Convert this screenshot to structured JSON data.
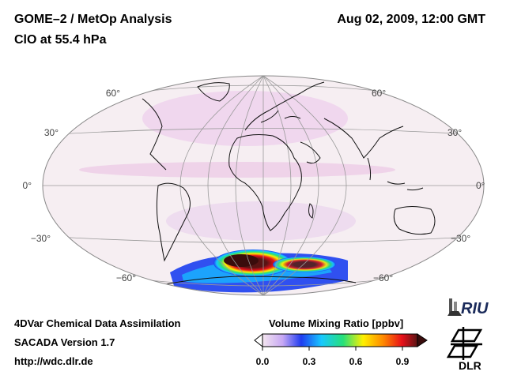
{
  "header": {
    "title": "GOME–2 / MetOp Analysis",
    "subtitle": "ClO at 55.4 hPa",
    "datetime": "Aug 02, 2009, 12:00 GMT"
  },
  "map": {
    "projection": "Hammer-Aitoff",
    "lat_labels_left": [
      "60°",
      "30°",
      "0°",
      "−30°",
      "−60°"
    ],
    "lat_labels_right": [
      "60°",
      "30°",
      "0°",
      "−30°",
      "−60°"
    ],
    "field": {
      "quantity": "ClO",
      "pressure_hPa": 55.4,
      "max_region": "South Atlantic, ~50°S–60°S",
      "max_value_ppbv": 0.9
    }
  },
  "colorbar": {
    "title": "Volume Mixing Ratio [ppbv]",
    "ticks": [
      "0.0",
      "0.3",
      "0.6",
      "0.9"
    ],
    "tick_values": [
      0.0,
      0.3,
      0.6,
      0.9
    ],
    "range": [
      0.0,
      1.0
    ],
    "colors": [
      "#f4e6ef",
      "#c7a8f4",
      "#1f3cf0",
      "#18c8ff",
      "#26e07a",
      "#fff000",
      "#ff8800",
      "#e8101a",
      "#5a1414"
    ]
  },
  "footer": {
    "line1": "4DVar Chemical Data Assimilation",
    "line2": "SACADA Version 1.7",
    "line3": "http://wdc.dlr.de"
  },
  "logos": {
    "riu_text": "RIU",
    "dlr_text": "DLR"
  }
}
